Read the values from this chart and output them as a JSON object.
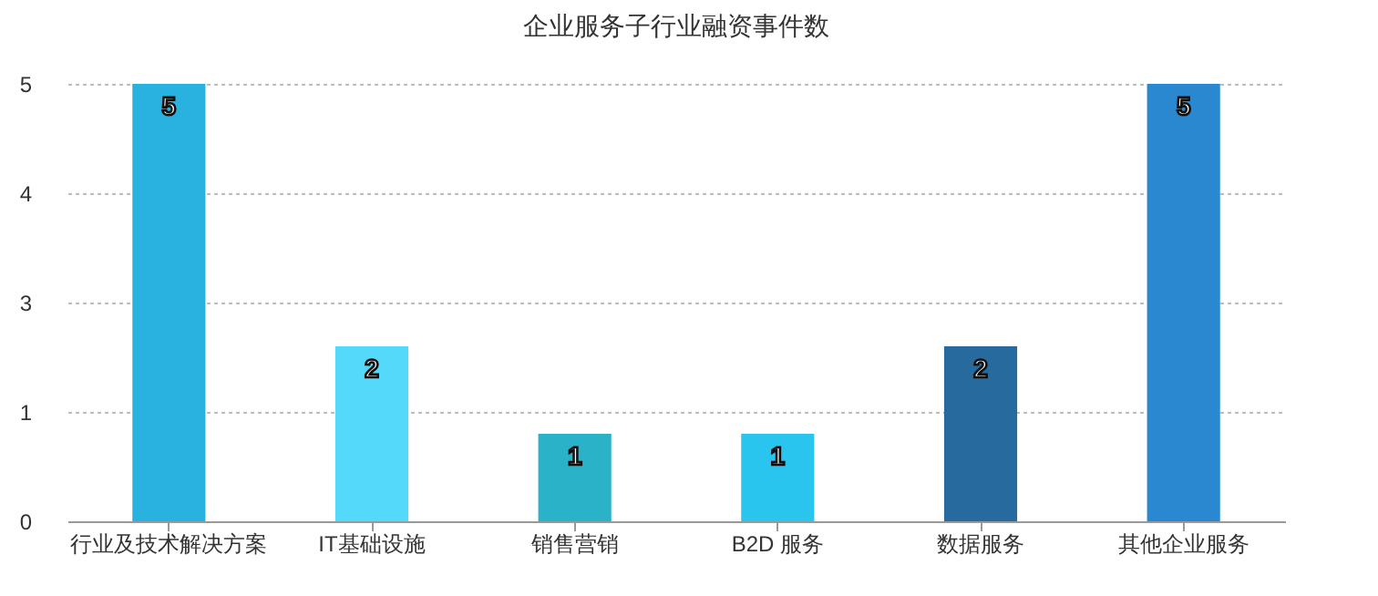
{
  "chart_data": {
    "type": "bar",
    "title": "企业服务子行业融资事件数",
    "categories": [
      "行业及技术解决方案",
      "IT基础设施",
      "销售营销",
      "B2D 服务",
      "数据服务",
      "其他企业服务"
    ],
    "values": [
      5,
      2,
      1,
      1,
      2,
      5
    ],
    "colors": [
      "#29b1e0",
      "#55d9fb",
      "#29b2c8",
      "#2ac5ef",
      "#276a9e",
      "#2a88d0"
    ],
    "ylim": [
      0,
      5
    ],
    "yticks": [
      {
        "value": 0,
        "label": "0"
      },
      {
        "value": 1.25,
        "label": "1"
      },
      {
        "value": 2.5,
        "label": "3"
      },
      {
        "value": 3.75,
        "label": "4"
      },
      {
        "value": 5,
        "label": "5"
      }
    ],
    "grid": "y",
    "data_labels": true
  }
}
